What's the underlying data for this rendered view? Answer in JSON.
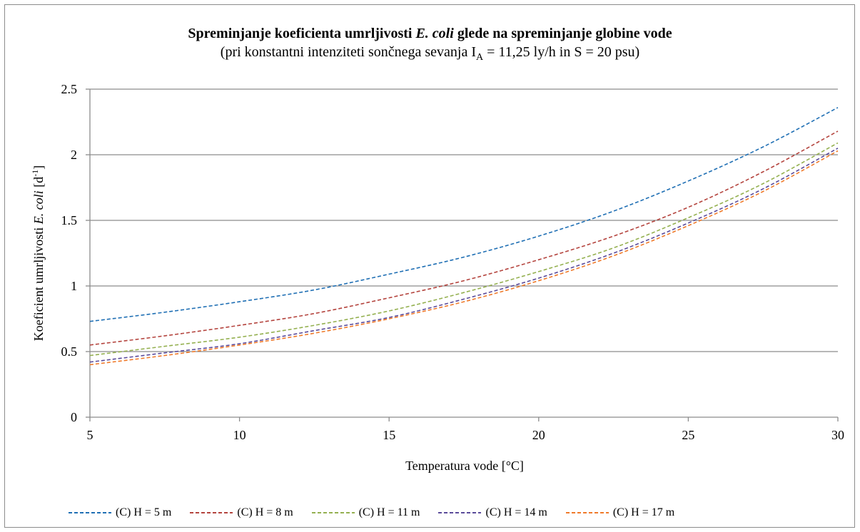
{
  "title_parts": [
    "Spreminjanje koeficienta umrljivosti ",
    "E. coli",
    " glede na spreminjanje globine vode"
  ],
  "subtitle_parts": [
    "(pri konstantni intenziteti sončnega sevanja I",
    "A",
    " = 11,25 ly/h in S = 20 psu)"
  ],
  "colors": {
    "gridline": "#8c8c8c",
    "axis": "#8c8c8c",
    "frame": "#8c8c8c"
  },
  "chart_data": {
    "type": "line",
    "title": "Spreminjanje koeficienta umrljivosti E. coli glede na spreminjanje globine vode",
    "subtitle": "(pri konstantni intenziteti sončnega sevanja IA = 11,25 ly/h in S = 20 psu)",
    "xlabel": "Temperatura vode [°C]",
    "ylabel_parts": [
      "Koeficient umrljivosti ",
      "E. coli",
      " [d",
      "-1",
      "]"
    ],
    "xlim": [
      5,
      30
    ],
    "ylim": [
      0,
      2.5
    ],
    "xticks": [
      "5",
      "10",
      "15",
      "20",
      "25",
      "30"
    ],
    "yticks": [
      "0",
      "0.5",
      "1",
      "1.5",
      "2",
      "2.5"
    ],
    "grid": true,
    "legend_position": "bottom",
    "x": [
      5,
      7.5,
      10,
      12.5,
      15,
      17.5,
      20,
      22.5,
      25,
      27.5,
      30
    ],
    "series": [
      {
        "name": "(C) H = 5 m",
        "color": "#1f6fb4",
        "dash": "dashed",
        "values": [
          0.73,
          0.8,
          0.88,
          0.97,
          1.09,
          1.22,
          1.38,
          1.57,
          1.8,
          2.06,
          2.36
        ]
      },
      {
        "name": "(C) H = 8 m",
        "color": "#b4443e",
        "dash": "dashed",
        "values": [
          0.55,
          0.62,
          0.7,
          0.79,
          0.91,
          1.04,
          1.2,
          1.38,
          1.6,
          1.87,
          2.18
        ]
      },
      {
        "name": "(C) H = 11 m",
        "color": "#94b050",
        "dash": "dashed",
        "values": [
          0.47,
          0.54,
          0.61,
          0.7,
          0.81,
          0.95,
          1.11,
          1.29,
          1.52,
          1.78,
          2.09
        ]
      },
      {
        "name": "(C) H = 14 m",
        "color": "#5a4a9a",
        "dash": "dashed",
        "values": [
          0.42,
          0.49,
          0.56,
          0.66,
          0.76,
          0.9,
          1.06,
          1.25,
          1.48,
          1.74,
          2.05
        ]
      },
      {
        "name": "(C) H = 17 m",
        "color": "#f07a2a",
        "dash": "dashed",
        "values": [
          0.4,
          0.47,
          0.55,
          0.64,
          0.75,
          0.88,
          1.04,
          1.23,
          1.46,
          1.72,
          2.03
        ]
      }
    ]
  }
}
